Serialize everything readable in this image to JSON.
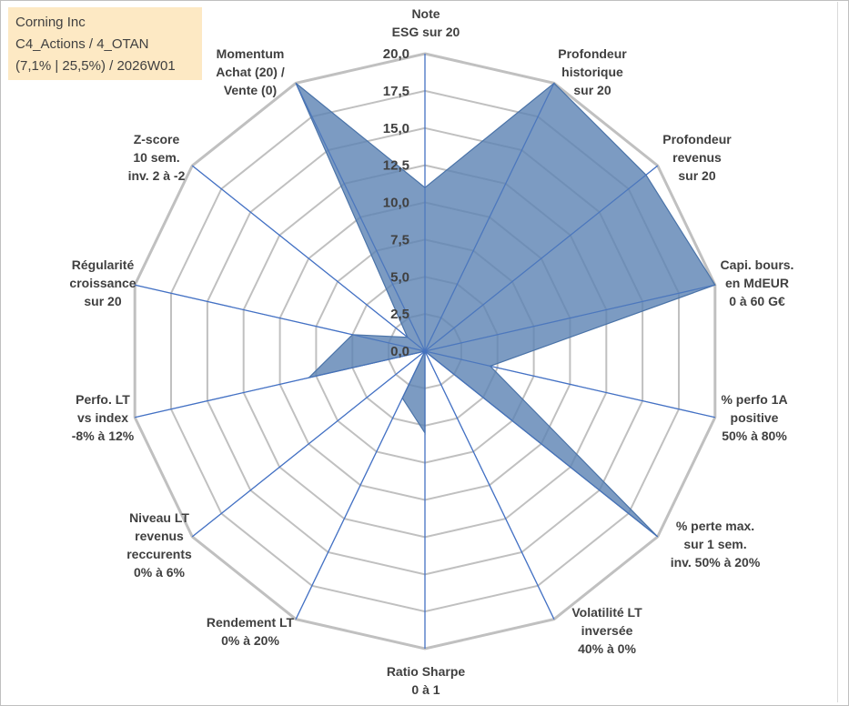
{
  "info": {
    "line1": "Corning Inc",
    "line2": "C4_Actions / 4_OTAN",
    "line3": "(7,1% | 25,5%) / 2026W01"
  },
  "chart_data": {
    "type": "radar",
    "title": "",
    "max": 20,
    "tick_labels": [
      "0,0",
      "2,5",
      "5,0",
      "7,5",
      "10,0",
      "12,5",
      "15,0",
      "17,5",
      "20,0"
    ],
    "categories": [
      [
        "Note",
        "ESG sur 20"
      ],
      [
        "Profondeur",
        "historique",
        "sur 20"
      ],
      [
        "Profondeur",
        "revenus",
        "sur 20"
      ],
      [
        "Capi. bours.",
        "en MdEUR",
        "0 à 60 G€"
      ],
      [
        "% perfo 1A",
        "positive",
        "50% à 80%"
      ],
      [
        "% perte max.",
        "sur 1 sem.",
        "inv. 50% à 20%"
      ],
      [
        "Volatilité LT",
        "inversée",
        "40% à 0%"
      ],
      [
        "Ratio Sharpe",
        "0 à 1"
      ],
      [
        "Rendement LT",
        "0% à 20%"
      ],
      [
        "Niveau LT",
        "revenus",
        "reccurents",
        "0% à 6%"
      ],
      [
        "Perfo. LT",
        "vs index",
        "-8% à 12%"
      ],
      [
        "Régularité",
        "croissance",
        "sur 20"
      ],
      [
        "Z-score",
        "10 sem.",
        "inv. 2 à -2"
      ],
      [
        "Momentum",
        "Achat (20) /",
        "Vente (0)"
      ]
    ],
    "series": [
      {
        "name": "Corning Inc",
        "values": [
          11,
          20,
          19,
          20,
          4.5,
          20,
          0,
          5.5,
          3.5,
          0,
          8,
          5,
          1.5,
          20
        ]
      }
    ],
    "colors": {
      "fill": "#5b82b3",
      "fill_opacity": 0.8,
      "series_line": "#4a73a8",
      "spoke": "#4472c4",
      "grid": "#c0c0c0",
      "label": "#404040"
    }
  }
}
